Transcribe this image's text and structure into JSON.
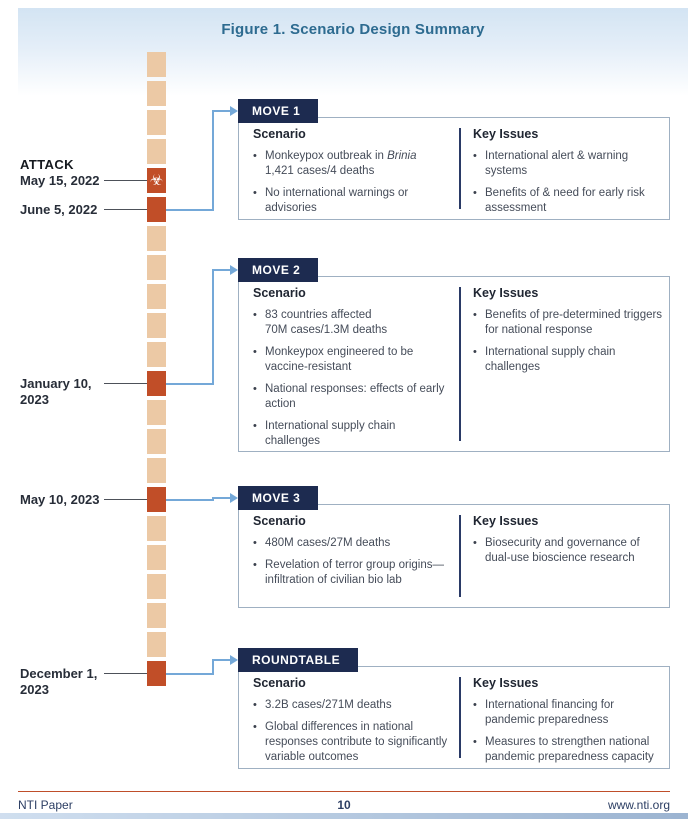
{
  "page": {
    "title": "Figure 1. Scenario Design Summary"
  },
  "timeline": {
    "biohazard_icon": "☣",
    "squares": [
      "plain",
      "plain",
      "plain",
      "plain",
      "attack",
      "event",
      "plain",
      "plain",
      "plain",
      "plain",
      "plain",
      "event",
      "plain",
      "plain",
      "plain",
      "event",
      "plain",
      "plain",
      "plain",
      "plain",
      "plain",
      "event"
    ],
    "events": [
      {
        "emphasis": "ATTACK",
        "lines": [
          "May 15, 2022"
        ]
      },
      {
        "lines": [
          "June 5, 2022"
        ]
      },
      {
        "lines": [
          "January 10,",
          "2023"
        ]
      },
      {
        "lines": [
          "May 10, 2023"
        ]
      },
      {
        "lines": [
          "December 1,",
          "2023"
        ]
      }
    ]
  },
  "boxes": [
    {
      "tab": "MOVE 1",
      "scenario": {
        "heading": "Scenario",
        "bullets": [
          {
            "pre": "Monkeypox outbreak in ",
            "italic": "Brinia",
            "post": "\n1,421 cases/4 deaths"
          },
          "No international warnings or advisories"
        ]
      },
      "key_issues": {
        "heading": "Key Issues",
        "bullets": [
          "International alert & warning systems",
          "Benefits of & need for early risk assessment"
        ]
      }
    },
    {
      "tab": "MOVE 2",
      "scenario": {
        "heading": "Scenario",
        "bullets": [
          "83 countries affected\n70M cases/1.3M deaths",
          "Monkeypox engineered to be vaccine-resistant",
          "National responses: effects of early action",
          "International supply chain challenges"
        ]
      },
      "key_issues": {
        "heading": "Key Issues",
        "bullets": [
          "Benefits of pre-determined triggers for national response",
          "International supply chain challenges"
        ]
      }
    },
    {
      "tab": "MOVE 3",
      "scenario": {
        "heading": "Scenario",
        "bullets": [
          "480M cases/27M deaths",
          "Revelation of terror group origins—infiltration of civilian bio lab"
        ]
      },
      "key_issues": {
        "heading": "Key Issues",
        "bullets": [
          "Biosecurity and governance of dual-use bioscience research"
        ]
      }
    },
    {
      "tab": "ROUNDTABLE",
      "scenario": {
        "heading": "Scenario",
        "bullets": [
          "3.2B cases/271M deaths",
          "Global differences in national responses contribute to significantly variable outcomes"
        ]
      },
      "key_issues": {
        "heading": "Key Issues",
        "bullets": [
          "International financing for pandemic preparedness",
          "Measures to strengthen national pandemic preparedness capacity"
        ]
      }
    }
  ],
  "footer": {
    "left": "NTI Paper",
    "page_number": "10",
    "right": "www.nti.org"
  },
  "colors": {
    "title_teal": "#2d6b90",
    "tab_navy": "#1d2b50",
    "timeline_tan": "#ecc9a5",
    "event_orange": "#c14e28",
    "connector_blue": "#74a8d8",
    "footer_rule_orange": "#bf4e2a"
  }
}
